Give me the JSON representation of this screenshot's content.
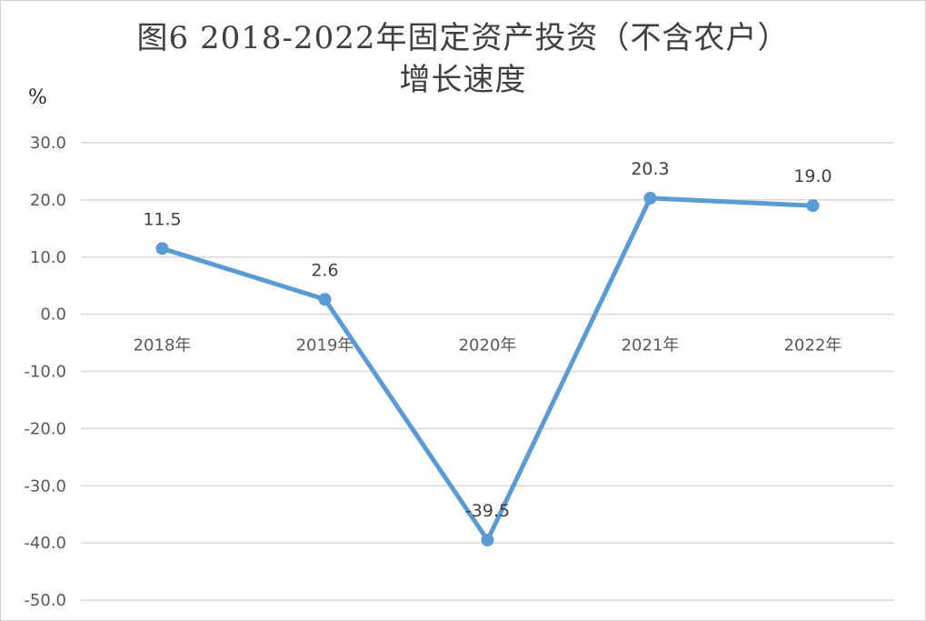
{
  "chart_data": {
    "type": "line",
    "title_line1": "图6   2018-2022年固定资产投资（不含农户）",
    "title_line2": "增长速度",
    "unit": "%",
    "categories": [
      "2018年",
      "2019年",
      "2020年",
      "2021年",
      "2022年"
    ],
    "series": [
      {
        "values": [
          11.5,
          2.6,
          -39.5,
          20.3,
          19.0
        ]
      }
    ],
    "data_labels": [
      "11.5",
      "2.6",
      "-39.5",
      "20.3",
      "19.0"
    ],
    "y_ticks": [
      30.0,
      20.0,
      10.0,
      0.0,
      -10.0,
      -20.0,
      -30.0,
      -40.0,
      -50.0
    ],
    "y_tick_labels": [
      "30.0",
      "20.0",
      "10.0",
      "0.0",
      "-10.0",
      "-20.0",
      "-30.0",
      "-40.0",
      "-50.0"
    ],
    "ylim": [
      -50,
      30
    ],
    "grid": true,
    "legend": "none",
    "colors": {
      "line": "#5b9bd5",
      "grid": "#d9d9d9",
      "text": "#595959"
    }
  }
}
